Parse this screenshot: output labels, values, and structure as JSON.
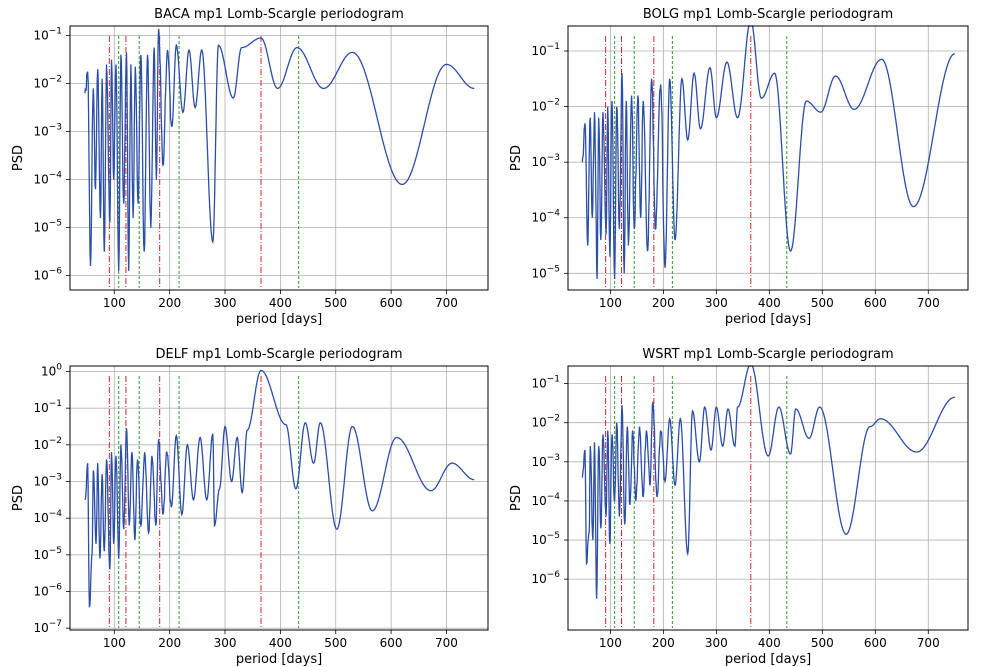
{
  "colors": {
    "series": "#2b4ea8",
    "red_markers": "#d62728",
    "green_markers": "#2ca02c",
    "grid": "#b0b0b0"
  },
  "chart_data": [
    {
      "type": "line",
      "title": "BACA mp1 Lomb-Scargle periodogram",
      "xlabel": "period [days]",
      "ylabel": "PSD",
      "xlim": [
        20,
        775
      ],
      "ylim_log10": [
        -6.3,
        -0.8
      ],
      "yscale": "log",
      "grid": true,
      "xticks": [
        100,
        200,
        300,
        400,
        500,
        600,
        700
      ],
      "yticks_exp": [
        -6,
        -5,
        -4,
        -3,
        -2,
        -1
      ],
      "red_markers": [
        91,
        121,
        182,
        365
      ],
      "green_markers": [
        108,
        145,
        217,
        433
      ],
      "peaks": [
        [
          52,
          -1.75
        ],
        [
          62,
          -2.1
        ],
        [
          70,
          -1.7
        ],
        [
          78,
          -1.9
        ],
        [
          86,
          -1.6
        ],
        [
          95,
          -1.5
        ],
        [
          103,
          -1.6
        ],
        [
          112,
          -1.4
        ],
        [
          122,
          -1.35
        ],
        [
          130,
          -1.6
        ],
        [
          138,
          -1.65
        ],
        [
          148,
          -1.4
        ],
        [
          160,
          -1.4
        ],
        [
          172,
          -1.25
        ],
        [
          180,
          -0.86
        ],
        [
          196,
          -1.3
        ],
        [
          212,
          -1.2
        ],
        [
          235,
          -1.3
        ],
        [
          258,
          -1.3
        ],
        [
          288,
          -1.2
        ],
        [
          330,
          -1.25
        ],
        [
          365,
          -1.05
        ],
        [
          430,
          -1.25
        ],
        [
          530,
          -1.35
        ],
        [
          700,
          -1.6
        ]
      ],
      "dips": [
        [
          57,
          -5.8
        ],
        [
          66,
          -4.2
        ],
        [
          75,
          -4.8
        ],
        [
          82,
          -5.5
        ],
        [
          92,
          -4.9
        ],
        [
          99,
          -4.0
        ],
        [
          108,
          -5.9
        ],
        [
          117,
          -4.5
        ],
        [
          126,
          -5.9
        ],
        [
          134,
          -4.8
        ],
        [
          143,
          -4.5
        ],
        [
          154,
          -5.5
        ],
        [
          166,
          -5.0
        ],
        [
          176,
          -4.0
        ],
        [
          188,
          -3.7
        ],
        [
          204,
          -2.9
        ],
        [
          224,
          -2.6
        ],
        [
          246,
          -2.5
        ],
        [
          278,
          -5.3
        ],
        [
          315,
          -2.3
        ],
        [
          395,
          -2.1
        ],
        [
          478,
          -2.1
        ],
        [
          620,
          -4.1
        ]
      ],
      "end": [
        750,
        -2.1
      ],
      "start": [
        47,
        -2.2
      ]
    },
    {
      "type": "line",
      "title": "BOLG mp1 Lomb-Scargle periodogram",
      "xlabel": "period [days]",
      "ylabel": "PSD",
      "xlim": [
        20,
        775
      ],
      "ylim_log10": [
        -5.3,
        -0.55
      ],
      "yscale": "log",
      "grid": true,
      "xticks": [
        100,
        200,
        300,
        400,
        500,
        600,
        700
      ],
      "yticks_exp": [
        -5,
        -4,
        -3,
        -2,
        -1
      ],
      "red_markers": [
        91,
        121,
        182,
        365
      ],
      "green_markers": [
        108,
        145,
        217,
        433
      ],
      "peaks": [
        [
          52,
          -2.3
        ],
        [
          62,
          -2.2
        ],
        [
          70,
          -2.1
        ],
        [
          78,
          -2.2
        ],
        [
          86,
          -2.1
        ],
        [
          95,
          -2.0
        ],
        [
          103,
          -1.9
        ],
        [
          112,
          -2.0
        ],
        [
          122,
          -1.4
        ],
        [
          130,
          -1.9
        ],
        [
          140,
          -1.8
        ],
        [
          152,
          -1.8
        ],
        [
          162,
          -1.9
        ],
        [
          178,
          -1.5
        ],
        [
          195,
          -1.6
        ],
        [
          212,
          -1.5
        ],
        [
          235,
          -1.5
        ],
        [
          258,
          -1.4
        ],
        [
          288,
          -1.3
        ],
        [
          320,
          -1.2
        ],
        [
          365,
          -0.45
        ],
        [
          410,
          -1.4
        ],
        [
          470,
          -1.9
        ],
        [
          525,
          -1.45
        ],
        [
          612,
          -1.15
        ],
        [
          750,
          -1.05
        ]
      ],
      "dips": [
        [
          57,
          -4.5
        ],
        [
          66,
          -4.0
        ],
        [
          75,
          -5.1
        ],
        [
          82,
          -4.4
        ],
        [
          92,
          -4.3
        ],
        [
          99,
          -4.7
        ],
        [
          108,
          -5.1
        ],
        [
          117,
          -4.2
        ],
        [
          126,
          -5.0
        ],
        [
          134,
          -4.5
        ],
        [
          145,
          -4.2
        ],
        [
          157,
          -4.0
        ],
        [
          170,
          -4.6
        ],
        [
          185,
          -4.2
        ],
        [
          203,
          -4.9
        ],
        [
          222,
          -4.4
        ],
        [
          246,
          -2.6
        ],
        [
          270,
          -2.4
        ],
        [
          300,
          -2.2
        ],
        [
          340,
          -2.2
        ],
        [
          385,
          -1.85
        ],
        [
          440,
          -4.6
        ],
        [
          497,
          -2.1
        ],
        [
          560,
          -2.05
        ],
        [
          672,
          -3.8
        ]
      ],
      "end": [
        750,
        -1.05
      ],
      "start": [
        47,
        -3.0
      ]
    },
    {
      "type": "line",
      "title": "DELF mp1 Lomb-Scargle periodogram",
      "xlabel": "period [days]",
      "ylabel": "PSD",
      "xlim": [
        20,
        775
      ],
      "ylim_log10": [
        -7.05,
        0.15
      ],
      "yscale": "log",
      "grid": true,
      "xticks": [
        100,
        200,
        300,
        400,
        500,
        600,
        700
      ],
      "yticks_exp": [
        -7,
        -6,
        -5,
        -4,
        -3,
        -2,
        -1,
        0
      ],
      "red_markers": [
        91,
        121,
        182,
        365
      ],
      "green_markers": [
        108,
        145,
        217,
        433
      ],
      "peaks": [
        [
          52,
          -2.5
        ],
        [
          62,
          -2.7
        ],
        [
          70,
          -2.5
        ],
        [
          78,
          -2.8
        ],
        [
          86,
          -2.4
        ],
        [
          95,
          -2.2
        ],
        [
          103,
          -2.3
        ],
        [
          112,
          -2.0
        ],
        [
          122,
          -1.55
        ],
        [
          132,
          -2.2
        ],
        [
          142,
          -2.4
        ],
        [
          155,
          -2.2
        ],
        [
          168,
          -2.3
        ],
        [
          180,
          -1.85
        ],
        [
          195,
          -2.2
        ],
        [
          212,
          -1.75
        ],
        [
          232,
          -2.0
        ],
        [
          255,
          -1.8
        ],
        [
          278,
          -1.7
        ],
        [
          300,
          -1.5
        ],
        [
          322,
          -1.8
        ],
        [
          340,
          -1.6
        ],
        [
          365,
          0.03
        ],
        [
          410,
          -1.45
        ],
        [
          445,
          -1.4
        ],
        [
          472,
          -1.4
        ],
        [
          530,
          -1.5
        ],
        [
          610,
          -1.8
        ],
        [
          710,
          -2.5
        ]
      ],
      "dips": [
        [
          55,
          -6.4
        ],
        [
          60,
          -5.0
        ],
        [
          67,
          -4.7
        ],
        [
          74,
          -5.1
        ],
        [
          82,
          -4.9
        ],
        [
          92,
          -5.4
        ],
        [
          99,
          -4.7
        ],
        [
          108,
          -5.1
        ],
        [
          117,
          -4.3
        ],
        [
          127,
          -4.2
        ],
        [
          137,
          -4.6
        ],
        [
          148,
          -4.2
        ],
        [
          162,
          -4.4
        ],
        [
          175,
          -4.2
        ],
        [
          188,
          -3.9
        ],
        [
          203,
          -3.7
        ],
        [
          222,
          -3.9
        ],
        [
          243,
          -3.5
        ],
        [
          267,
          -3.5
        ],
        [
          281,
          -4.2
        ],
        [
          290,
          -3.2
        ],
        [
          312,
          -3.0
        ],
        [
          331,
          -3.3
        ],
        [
          428,
          -3.2
        ],
        [
          460,
          -2.5
        ],
        [
          502,
          -4.3
        ],
        [
          566,
          -3.8
        ],
        [
          672,
          -3.25
        ]
      ],
      "end": [
        750,
        -2.95
      ],
      "start": [
        47,
        -3.5
      ]
    },
    {
      "type": "line",
      "title": "WSRT mp1 Lomb-Scargle periodogram",
      "xlabel": "period [days]",
      "ylabel": "PSD",
      "xlim": [
        20,
        775
      ],
      "ylim_log10": [
        -7.3,
        -0.55
      ],
      "yscale": "log",
      "grid": true,
      "xticks": [
        100,
        200,
        300,
        400,
        500,
        600,
        700
      ],
      "yticks_exp": [
        -6,
        -5,
        -4,
        -3,
        -2,
        -1
      ],
      "red_markers": [
        91,
        121,
        182,
        365
      ],
      "green_markers": [
        108,
        145,
        217,
        433
      ],
      "peaks": [
        [
          52,
          -2.7
        ],
        [
          62,
          -2.6
        ],
        [
          70,
          -2.5
        ],
        [
          78,
          -2.6
        ],
        [
          86,
          -2.3
        ],
        [
          95,
          -2.2
        ],
        [
          103,
          -2.3
        ],
        [
          112,
          -2.0
        ],
        [
          122,
          -1.55
        ],
        [
          132,
          -2.1
        ],
        [
          142,
          -2.2
        ],
        [
          155,
          -2.1
        ],
        [
          168,
          -2.2
        ],
        [
          180,
          -1.5
        ],
        [
          195,
          -2.2
        ],
        [
          212,
          -1.9
        ],
        [
          232,
          -1.9
        ],
        [
          255,
          -1.7
        ],
        [
          278,
          -1.6
        ],
        [
          300,
          -1.6
        ],
        [
          322,
          -1.65
        ],
        [
          340,
          -1.6
        ],
        [
          365,
          -0.5
        ],
        [
          418,
          -1.6
        ],
        [
          450,
          -1.65
        ],
        [
          495,
          -1.6
        ],
        [
          610,
          -1.9
        ],
        [
          750,
          -1.35
        ]
      ],
      "dips": [
        [
          55,
          -5.6
        ],
        [
          60,
          -4.8
        ],
        [
          67,
          -5.0
        ],
        [
          74,
          -6.5
        ],
        [
          82,
          -4.7
        ],
        [
          92,
          -4.4
        ],
        [
          99,
          -5.1
        ],
        [
          108,
          -4.0
        ],
        [
          117,
          -4.4
        ],
        [
          127,
          -4.6
        ],
        [
          137,
          -4.1
        ],
        [
          148,
          -4.0
        ],
        [
          162,
          -3.9
        ],
        [
          175,
          -3.6
        ],
        [
          188,
          -3.9
        ],
        [
          203,
          -3.5
        ],
        [
          222,
          -3.6
        ],
        [
          246,
          -5.35
        ],
        [
          268,
          -3.0
        ],
        [
          290,
          -2.7
        ],
        [
          312,
          -2.6
        ],
        [
          335,
          -2.6
        ],
        [
          398,
          -2.85
        ],
        [
          440,
          -2.8
        ],
        [
          475,
          -2.4
        ],
        [
          545,
          -4.85
        ],
        [
          590,
          -2.1
        ],
        [
          678,
          -2.75
        ]
      ],
      "end": [
        750,
        -1.35
      ],
      "start": [
        47,
        -3.4
      ]
    }
  ]
}
